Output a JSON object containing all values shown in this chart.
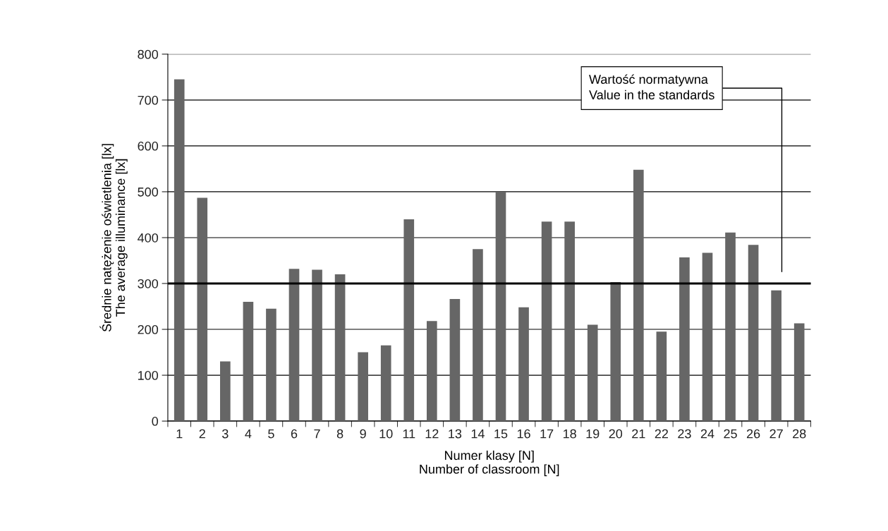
{
  "chart_data": {
    "type": "bar",
    "ylabel": "Średnie natężenie oświetlenia [lx]\nThe average illuminance [lx]",
    "xlabel": "Numer klasy [N]\nNumber of classroom [N]",
    "categories": [
      "1",
      "2",
      "3",
      "4",
      "5",
      "6",
      "7",
      "8",
      "9",
      "10",
      "11",
      "12",
      "13",
      "14",
      "15",
      "16",
      "17",
      "18",
      "19",
      "20",
      "21",
      "22",
      "23",
      "24",
      "25",
      "26",
      "27",
      "28"
    ],
    "values": [
      745,
      487,
      130,
      260,
      245,
      332,
      330,
      320,
      150,
      165,
      440,
      218,
      266,
      375,
      500,
      248,
      435,
      435,
      210,
      303,
      548,
      195,
      357,
      367,
      411,
      384,
      285,
      213
    ],
    "color": "#666666",
    "ylim": [
      0,
      800
    ],
    "yticks": [
      0,
      100,
      200,
      300,
      400,
      500,
      600,
      700,
      800
    ],
    "grid": "y",
    "ref_lines": [
      {
        "axis": "y",
        "value": 300,
        "color": "#000000",
        "line_style": "solid",
        "label": "Wartość normatywna\nValue in the standards"
      }
    ]
  }
}
